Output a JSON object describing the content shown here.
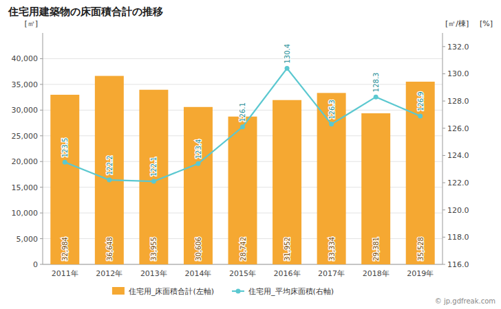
{
  "chart_data": {
    "type": "bar",
    "title": "住宅用建築物の床面積合計の推移",
    "categories": [
      "2011年",
      "2012年",
      "2013年",
      "2014年",
      "2015年",
      "2016年",
      "2017年",
      "2018年",
      "2019年"
    ],
    "series": [
      {
        "name": "住宅用_床面積合計(左軸)",
        "type": "bar",
        "color": "#f5a832",
        "values": [
          32984,
          36648,
          33955,
          30606,
          28742,
          31952,
          33334,
          29381,
          35528
        ],
        "value_labels": [
          "32,984",
          "36,648",
          "33,955",
          "30,606",
          "28,742",
          "31,952",
          "33,334",
          "29,381",
          "35,528"
        ]
      },
      {
        "name": "住宅用_平均床面積(右軸)",
        "type": "line",
        "axis": "y2",
        "color": "#5bc8d0",
        "marker": "circle",
        "values": [
          123.5,
          122.2,
          122.1,
          123.4,
          126.1,
          130.4,
          126.3,
          128.3,
          126.9
        ]
      }
    ],
    "ylabel": "[㎡]",
    "y2label": "[㎡/棟]",
    "annotations": [
      "[%]",
      "© jp.gdfreak.com"
    ],
    "ylim": [
      0,
      45000
    ],
    "yticks": [
      0,
      {
        "value": 5000,
        "label": "5,000"
      },
      {
        "value": 10000,
        "label": "10,000"
      },
      {
        "value": 15000,
        "label": "15,000"
      },
      {
        "value": 20000,
        "label": "20,000"
      },
      {
        "value": 25000,
        "label": "25,000"
      },
      {
        "value": 30000,
        "label": "30,000"
      },
      {
        "value": 35000,
        "label": "35,000"
      },
      {
        "value": 40000,
        "label": "40,000"
      }
    ],
    "y2lim": [
      116.0,
      133.0
    ],
    "y2ticks": [
      {
        "value": 116.0,
        "label": "116.0"
      },
      {
        "value": 118.0,
        "label": "118.0"
      },
      {
        "value": 120.0,
        "label": "120.0"
      },
      {
        "value": 122.0,
        "label": "122.0"
      },
      {
        "value": 124.0,
        "label": "124.0"
      },
      {
        "value": 126.0,
        "label": "126.0"
      },
      {
        "value": 128.0,
        "label": "128.0"
      },
      {
        "value": 130.0,
        "label": "130.0"
      },
      {
        "value": 132.0,
        "label": "132.0"
      }
    ],
    "grid": true,
    "data_labels": true,
    "legend": "bottom"
  }
}
